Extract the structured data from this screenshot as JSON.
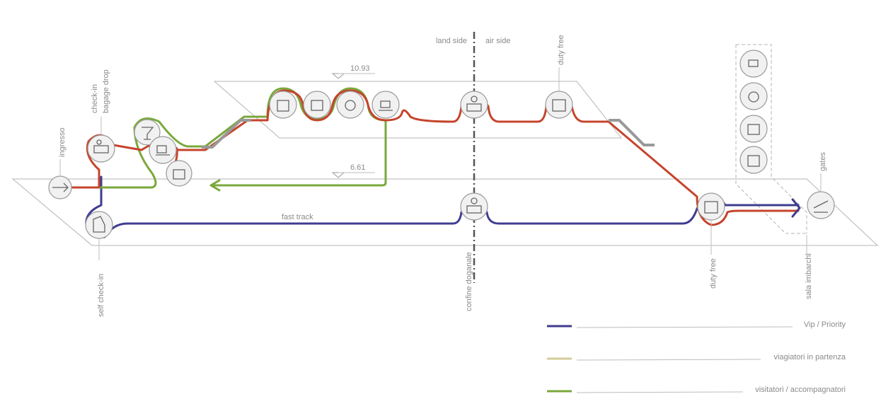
{
  "zones": {
    "left": "land side",
    "right": "air side"
  },
  "levels": {
    "upper": "10.93",
    "lower": "6.61"
  },
  "stops": {
    "ingresso": "ingresso",
    "checkin_1": "check-in",
    "checkin_2": "bagage drop",
    "self_checkin": "self check-in",
    "duty_free_top": "duty free",
    "customs": "confine doganale",
    "duty_free_bottom": "duty free",
    "sala": "sala imbarchi",
    "gates": "gates"
  },
  "route_label": "fast track",
  "legend": [
    "Vip / Priority",
    "viagiatori in partenza",
    "visitatori / accompagnatori"
  ]
}
